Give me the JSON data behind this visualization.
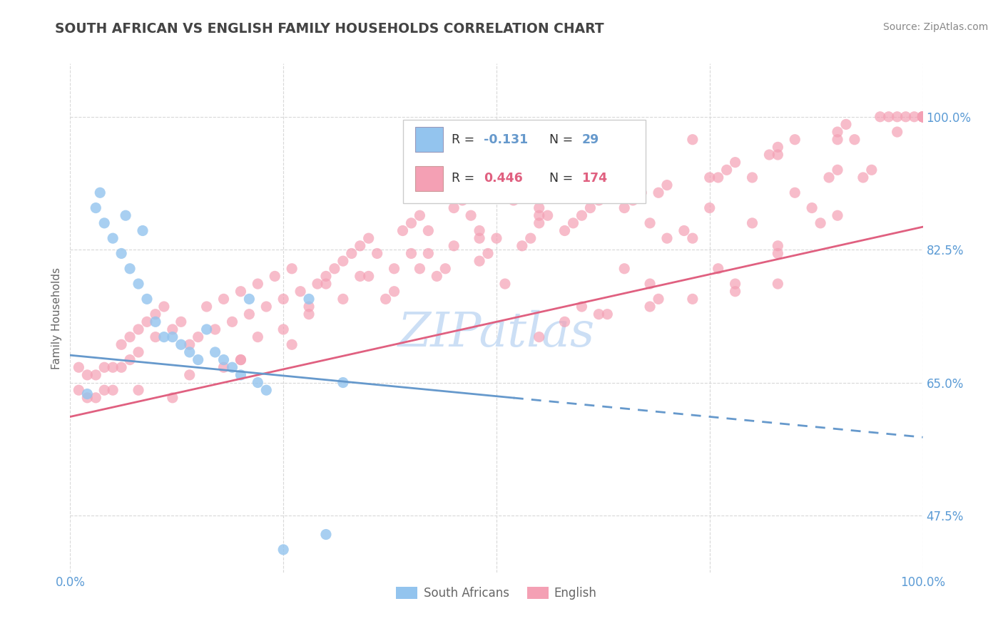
{
  "title": "SOUTH AFRICAN VS ENGLISH FAMILY HOUSEHOLDS CORRELATION CHART",
  "source": "Source: ZipAtlas.com",
  "ylabel": "Family Households",
  "legend_label_blue": "South Africans",
  "legend_label_pink": "English",
  "xlim": [
    0.0,
    1.0
  ],
  "ylim": [
    0.4,
    1.07
  ],
  "ytick_positions": [
    0.475,
    0.65,
    0.825,
    1.0
  ],
  "ytick_labels": [
    "47.5%",
    "65.0%",
    "82.5%",
    "100.0%"
  ],
  "xtick_positions": [
    0.0,
    1.0
  ],
  "xtick_labels": [
    "0.0%",
    "100.0%"
  ],
  "background_color": "#ffffff",
  "grid_color": "#d8d8d8",
  "blue_color": "#93C4EE",
  "pink_color": "#F4A0B4",
  "blue_line_color": "#6699CC",
  "pink_line_color": "#E06080",
  "title_color": "#444444",
  "source_color": "#888888",
  "axis_label_color": "#5B9BD5",
  "ylabel_color": "#666666",
  "watermark_color": "#CCDFF5",
  "legend_r_blue": "-0.131",
  "legend_n_blue": "29",
  "legend_r_pink": "0.446",
  "legend_n_pink": "174",
  "blue_line_solid_end": 0.52,
  "blue_line_start_y": 0.686,
  "blue_line_end_y": 0.578,
  "pink_line_start_y": 0.605,
  "pink_line_end_y": 0.855,
  "blue_x": [
    0.02,
    0.03,
    0.04,
    0.05,
    0.06,
    0.07,
    0.08,
    0.09,
    0.1,
    0.11,
    0.12,
    0.13,
    0.14,
    0.15,
    0.16,
    0.17,
    0.18,
    0.19,
    0.2,
    0.21,
    0.22,
    0.23,
    0.25,
    0.28,
    0.3,
    0.32,
    0.035,
    0.065,
    0.085
  ],
  "blue_y": [
    0.635,
    0.88,
    0.86,
    0.84,
    0.82,
    0.8,
    0.78,
    0.76,
    0.73,
    0.71,
    0.71,
    0.7,
    0.69,
    0.68,
    0.72,
    0.69,
    0.68,
    0.67,
    0.66,
    0.76,
    0.65,
    0.64,
    0.43,
    0.76,
    0.45,
    0.65,
    0.9,
    0.87,
    0.85
  ],
  "pink_x": [
    0.01,
    0.01,
    0.02,
    0.02,
    0.03,
    0.03,
    0.04,
    0.04,
    0.05,
    0.05,
    0.06,
    0.06,
    0.07,
    0.07,
    0.08,
    0.08,
    0.09,
    0.1,
    0.1,
    0.11,
    0.12,
    0.13,
    0.14,
    0.15,
    0.16,
    0.17,
    0.18,
    0.19,
    0.2,
    0.21,
    0.22,
    0.23,
    0.24,
    0.25,
    0.26,
    0.27,
    0.28,
    0.29,
    0.3,
    0.31,
    0.32,
    0.33,
    0.34,
    0.35,
    0.36,
    0.37,
    0.38,
    0.39,
    0.4,
    0.41,
    0.42,
    0.43,
    0.44,
    0.45,
    0.46,
    0.47,
    0.48,
    0.49,
    0.5,
    0.51,
    0.52,
    0.53,
    0.54,
    0.55,
    0.55,
    0.56,
    0.57,
    0.58,
    0.59,
    0.6,
    0.61,
    0.62,
    0.63,
    0.64,
    0.65,
    0.66,
    0.67,
    0.68,
    0.7,
    0.72,
    0.73,
    0.75,
    0.77,
    0.78,
    0.8,
    0.82,
    0.83,
    0.85,
    0.87,
    0.89,
    0.9,
    0.91,
    0.92,
    0.93,
    0.94,
    0.95,
    0.96,
    0.97,
    0.98,
    0.99,
    1.0,
    1.0,
    1.0,
    1.0,
    1.0,
    1.0,
    1.0,
    1.0,
    1.0,
    1.0,
    1.0,
    0.3,
    0.35,
    0.4,
    0.45,
    0.5,
    0.2,
    0.25,
    0.32,
    0.38,
    0.42,
    0.48,
    0.55,
    0.6,
    0.65,
    0.7,
    0.75,
    0.8,
    0.85,
    0.9,
    0.68,
    0.73,
    0.78,
    0.83,
    0.88,
    0.58,
    0.63,
    0.68,
    0.73,
    0.78,
    0.83,
    0.12,
    0.18,
    0.22,
    0.28,
    0.34,
    0.41,
    0.48,
    0.55,
    0.62,
    0.69,
    0.76,
    0.83,
    0.9,
    0.97,
    0.55,
    0.62,
    0.69,
    0.76,
    0.83,
    0.9,
    0.08,
    0.14,
    0.2,
    0.26
  ],
  "pink_y": [
    0.67,
    0.64,
    0.66,
    0.63,
    0.66,
    0.63,
    0.67,
    0.64,
    0.67,
    0.64,
    0.7,
    0.67,
    0.71,
    0.68,
    0.72,
    0.69,
    0.73,
    0.74,
    0.71,
    0.75,
    0.72,
    0.73,
    0.7,
    0.71,
    0.75,
    0.72,
    0.76,
    0.73,
    0.77,
    0.74,
    0.78,
    0.75,
    0.79,
    0.76,
    0.8,
    0.77,
    0.74,
    0.78,
    0.79,
    0.8,
    0.81,
    0.82,
    0.83,
    0.84,
    0.82,
    0.76,
    0.77,
    0.85,
    0.86,
    0.87,
    0.85,
    0.79,
    0.8,
    0.88,
    0.89,
    0.87,
    0.81,
    0.82,
    0.9,
    0.78,
    0.89,
    0.83,
    0.84,
    0.92,
    0.86,
    0.87,
    0.91,
    0.85,
    0.86,
    0.87,
    0.88,
    0.9,
    0.91,
    0.92,
    0.88,
    0.89,
    0.9,
    0.78,
    0.91,
    0.85,
    0.97,
    0.92,
    0.93,
    0.94,
    0.86,
    0.95,
    0.96,
    0.97,
    0.88,
    0.92,
    0.98,
    0.99,
    0.97,
    0.92,
    0.93,
    1.0,
    1.0,
    1.0,
    1.0,
    1.0,
    1.0,
    1.0,
    1.0,
    1.0,
    1.0,
    1.0,
    1.0,
    1.0,
    1.0,
    1.0,
    1.0,
    0.78,
    0.79,
    0.82,
    0.83,
    0.84,
    0.68,
    0.72,
    0.76,
    0.8,
    0.82,
    0.85,
    0.88,
    0.75,
    0.8,
    0.84,
    0.88,
    0.92,
    0.9,
    0.93,
    0.86,
    0.84,
    0.78,
    0.82,
    0.86,
    0.73,
    0.74,
    0.75,
    0.76,
    0.77,
    0.78,
    0.63,
    0.67,
    0.71,
    0.75,
    0.79,
    0.8,
    0.84,
    0.87,
    0.89,
    0.9,
    0.92,
    0.95,
    0.97,
    0.98,
    0.71,
    0.74,
    0.76,
    0.8,
    0.83,
    0.87,
    0.64,
    0.66,
    0.68,
    0.7
  ]
}
